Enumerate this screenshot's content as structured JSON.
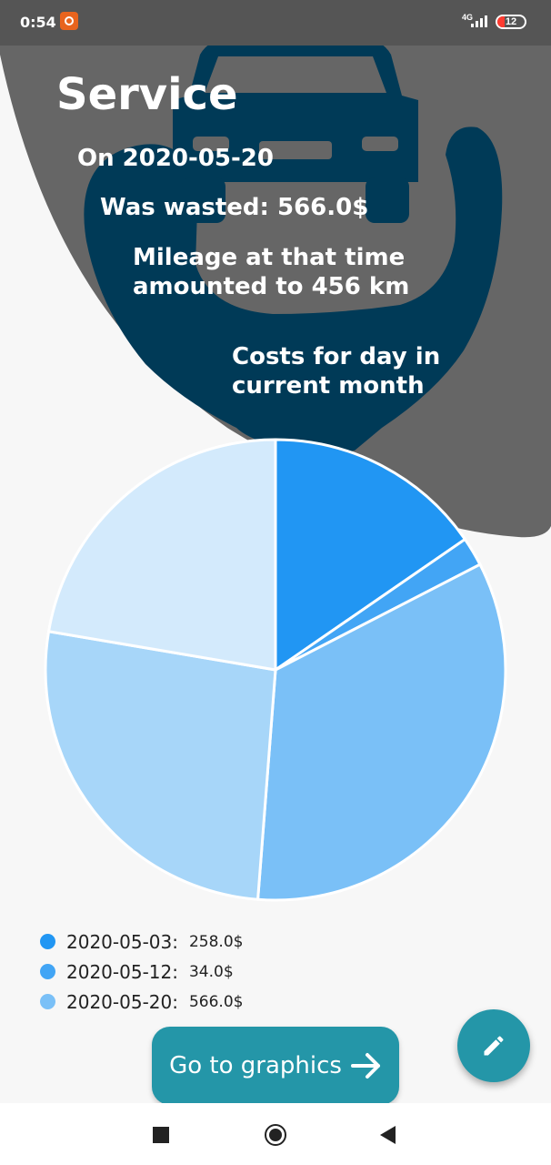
{
  "status_bar": {
    "time": "0:54",
    "network": "4G",
    "battery": "12"
  },
  "header": {
    "title": "Service",
    "date_line": "On 2020-05-20",
    "wasted_line": "Was wasted: 566.0$",
    "mileage_line": "Mileage at that time amounted to 456 km",
    "chart_caption": "Costs for day in current month"
  },
  "chart_data": {
    "type": "pie",
    "title": "Costs for day in current month",
    "slices": [
      {
        "label": "2020-05-03",
        "value": 258.0,
        "color": "#2196F3"
      },
      {
        "label": "2020-05-12",
        "value": 34.0,
        "color": "#42A5F5"
      },
      {
        "label": "2020-05-20",
        "value": 566.0,
        "color": "#7AC0F7"
      },
      {
        "label": "",
        "value": 443.0,
        "color": "#A7D6F9"
      },
      {
        "label": "",
        "value": 374.0,
        "color": "#D3EAFC"
      }
    ]
  },
  "legend": [
    {
      "date": "2020-05-03:",
      "value": "258.0$",
      "color": "#2196F3"
    },
    {
      "date": "2020-05-12:",
      "value": "34.0$",
      "color": "#42A5F5"
    },
    {
      "date": "2020-05-20:",
      "value": "566.0$",
      "color": "#7AC0F7"
    }
  ],
  "buttons": {
    "go_to_graphics": "Go to graphics"
  },
  "icons": {
    "fab": "pencil-icon",
    "go_arrow": "arrow-right-icon",
    "header_image": "car-icon"
  },
  "colors": {
    "header_gray": "#666666",
    "header_navy": "#003a57",
    "accent": "#2496a8"
  }
}
